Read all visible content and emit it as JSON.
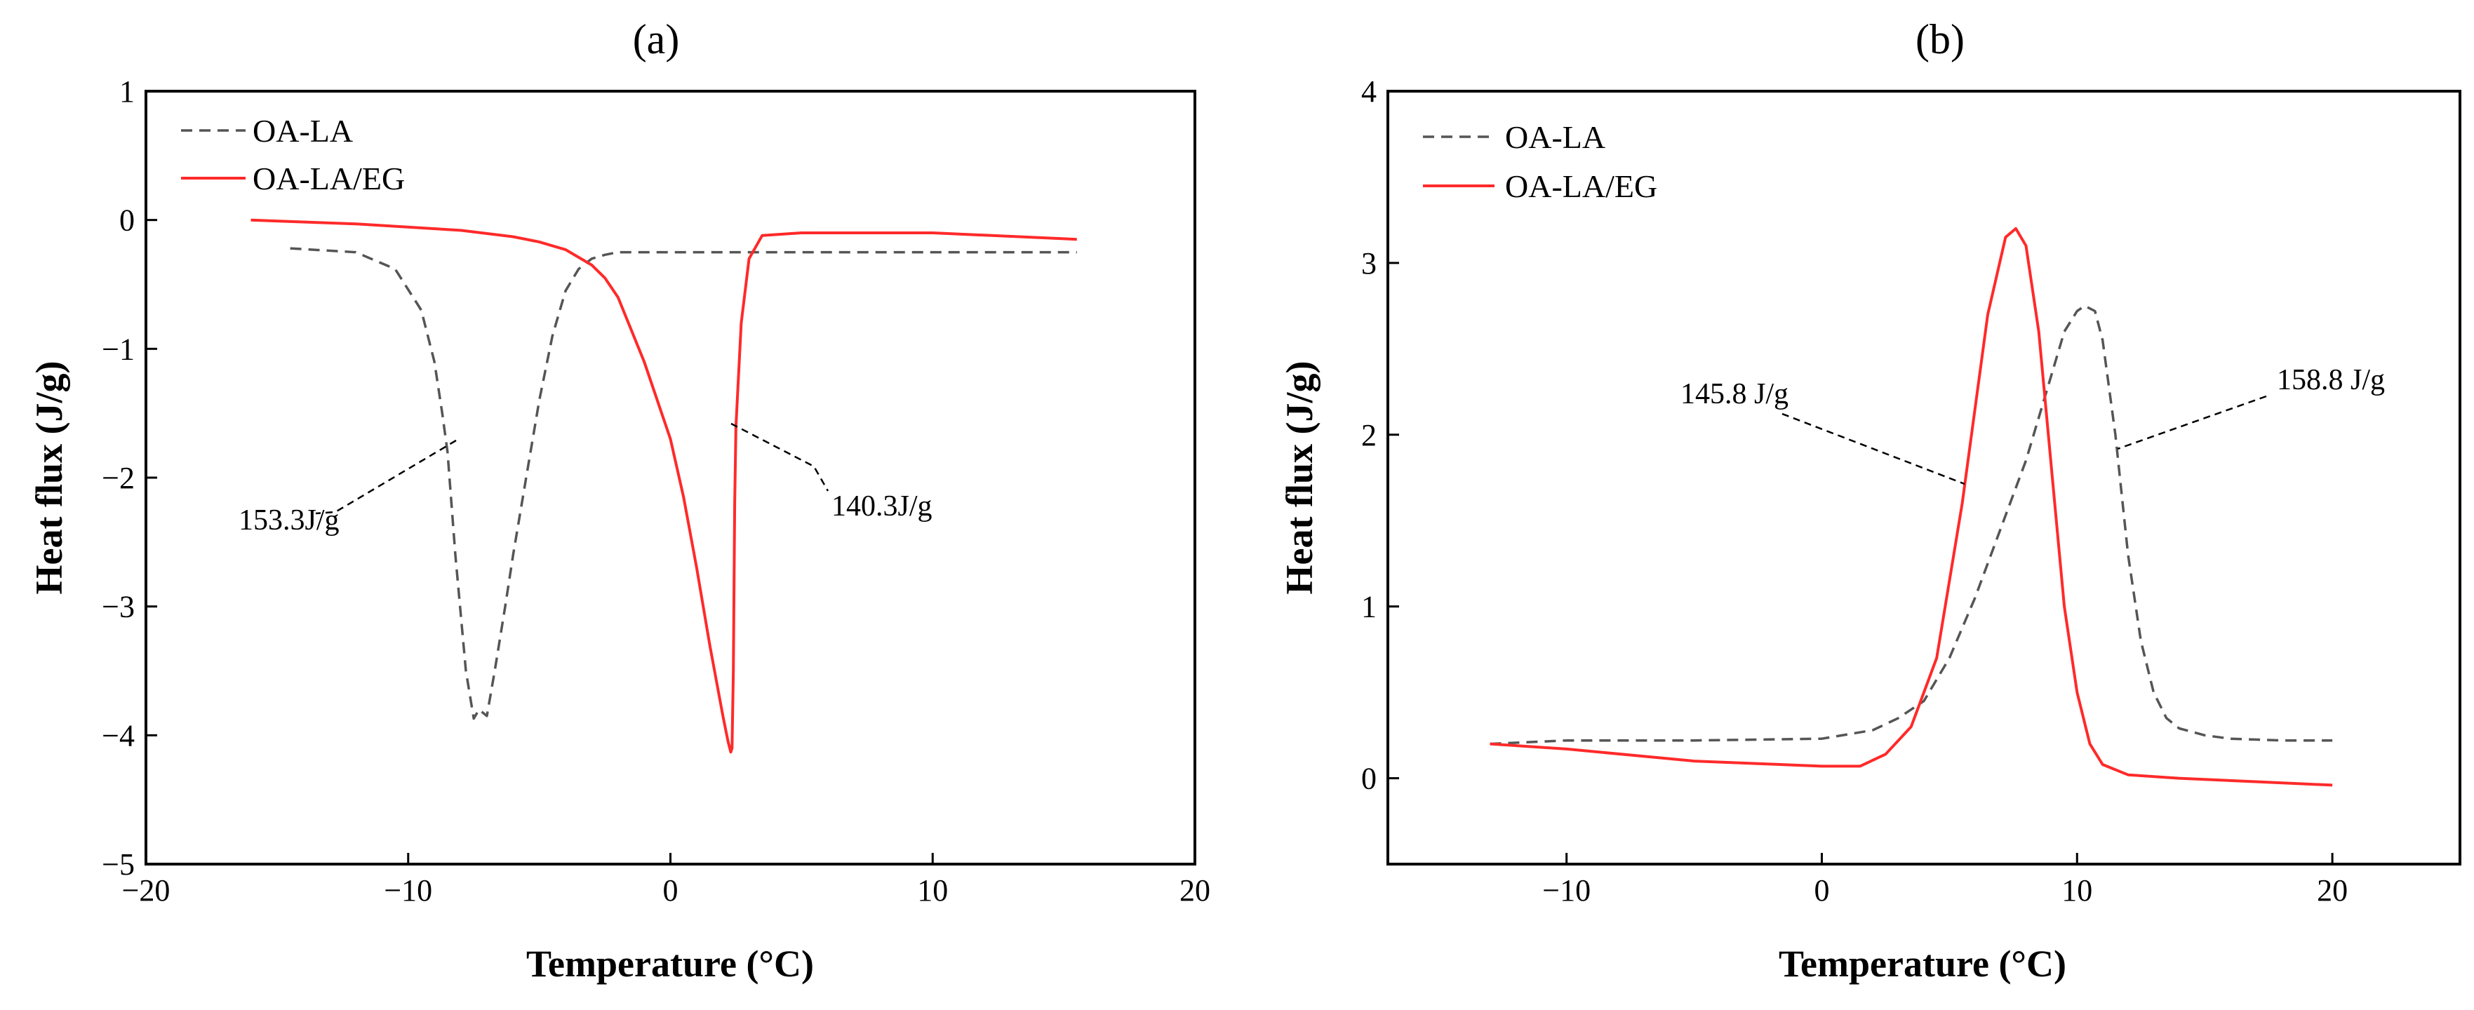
{
  "chart_data": [
    {
      "panel_label": "(a)",
      "type": "line",
      "xlabel": "Temperature (°C)",
      "ylabel": "Heat flux (J/g)",
      "xlim": [
        -20,
        20
      ],
      "ylim": [
        -5,
        1
      ],
      "xticks": [
        -20,
        -10,
        0,
        10,
        20
      ],
      "xtick_labels": [
        "−20",
        "−10",
        "0",
        "10",
        "20"
      ],
      "yticks": [
        -5,
        -4,
        -3,
        -2,
        -1,
        0,
        1
      ],
      "ytick_labels": [
        "−5",
        "−4",
        "−3",
        "−2",
        "−1",
        "0",
        "1"
      ],
      "legend": [
        "OA-LA",
        "OA-LA/EG"
      ],
      "series": [
        {
          "name": "OA-LA",
          "style": "dashed",
          "color": "#555555",
          "x": [
            -14.5,
            -12,
            -10.5,
            -9.5,
            -9,
            -8.7,
            -8.5,
            -8.2,
            -7.8,
            -7.5,
            -7.3,
            -7.0,
            -6.7,
            -6.3,
            -6.0,
            -5.5,
            -5.0,
            -4.5,
            -4.0,
            -3.5,
            -3.0,
            -2.5,
            -2.0,
            0,
            5,
            10,
            15.5
          ],
          "y": [
            -0.22,
            -0.25,
            -0.38,
            -0.7,
            -1.1,
            -1.5,
            -1.8,
            -2.6,
            -3.5,
            -3.87,
            -3.8,
            -3.85,
            -3.5,
            -3.0,
            -2.6,
            -2.0,
            -1.4,
            -0.9,
            -0.55,
            -0.38,
            -0.3,
            -0.27,
            -0.25,
            -0.25,
            -0.25,
            -0.25,
            -0.25
          ]
        },
        {
          "name": "OA-LA/EG",
          "style": "solid",
          "color": "#ff2a2a",
          "x": [
            -16,
            -12,
            -8,
            -6,
            -5,
            -4,
            -3,
            -2.5,
            -2,
            -1,
            0,
            0.5,
            1,
            1.5,
            2,
            2.2,
            2.3,
            2.35,
            2.4,
            2.45,
            2.5,
            2.7,
            3.0,
            3.5,
            5,
            10,
            15.5
          ],
          "y": [
            0.0,
            -0.03,
            -0.08,
            -0.13,
            -0.17,
            -0.23,
            -0.35,
            -0.45,
            -0.6,
            -1.1,
            -1.7,
            -2.15,
            -2.7,
            -3.3,
            -3.85,
            -4.05,
            -4.13,
            -4.1,
            -3.5,
            -2.2,
            -1.6,
            -0.8,
            -0.3,
            -0.12,
            -0.1,
            -0.1,
            -0.15
          ]
        }
      ],
      "annotations": [
        {
          "text": "153.3J/g",
          "x": -14.5,
          "y": -2.35
        },
        {
          "text": "140.3J/g",
          "x": 8.5,
          "y": -2.25
        }
      ]
    },
    {
      "panel_label": "(b)",
      "type": "line",
      "xlabel": "Temperature (°C)",
      "ylabel": "Heat flux (J/g)",
      "xlim": [
        -17,
        25
      ],
      "ylim": [
        -0.5,
        4
      ],
      "xticks": [
        -10,
        0,
        10,
        20
      ],
      "xtick_labels": [
        "−10",
        "0",
        "10",
        "20"
      ],
      "yticks": [
        0,
        1,
        2,
        3,
        4
      ],
      "ytick_labels": [
        "0",
        "1",
        "2",
        "3",
        "4"
      ],
      "legend": [
        "OA-LA",
        "OA-LA/EG"
      ],
      "series": [
        {
          "name": "OA-LA",
          "style": "dashed",
          "color": "#555555",
          "x": [
            -13,
            -10,
            -5,
            0,
            2,
            3,
            4,
            5,
            6,
            7,
            8,
            9,
            9.5,
            10,
            10.3,
            10.7,
            11,
            11.5,
            12,
            12.5,
            13,
            13.5,
            14,
            15,
            16,
            18,
            20
          ],
          "y": [
            0.2,
            0.22,
            0.22,
            0.23,
            0.28,
            0.35,
            0.45,
            0.7,
            1.05,
            1.45,
            1.85,
            2.35,
            2.6,
            2.72,
            2.75,
            2.72,
            2.55,
            2.0,
            1.3,
            0.8,
            0.5,
            0.35,
            0.29,
            0.25,
            0.23,
            0.22,
            0.22
          ]
        },
        {
          "name": "OA-LA/EG",
          "style": "solid",
          "color": "#ff2a2a",
          "x": [
            -13,
            -10,
            -5,
            0,
            1.5,
            2.5,
            3.5,
            4.5,
            5.5,
            6.5,
            7.2,
            7.6,
            8.0,
            8.5,
            9,
            9.5,
            10,
            10.5,
            11,
            12,
            14,
            17,
            20
          ],
          "y": [
            0.2,
            0.17,
            0.1,
            0.07,
            0.07,
            0.14,
            0.3,
            0.7,
            1.6,
            2.7,
            3.15,
            3.2,
            3.1,
            2.6,
            1.8,
            1.0,
            0.5,
            0.2,
            0.08,
            0.02,
            0.0,
            -0.02,
            -0.04
          ]
        }
      ],
      "annotations": [
        {
          "text": "145.8 J/g",
          "x": -5.3,
          "y": 2.18
        },
        {
          "text": "158.8 J/g",
          "x": 16.2,
          "y": 2.3
        }
      ]
    }
  ]
}
